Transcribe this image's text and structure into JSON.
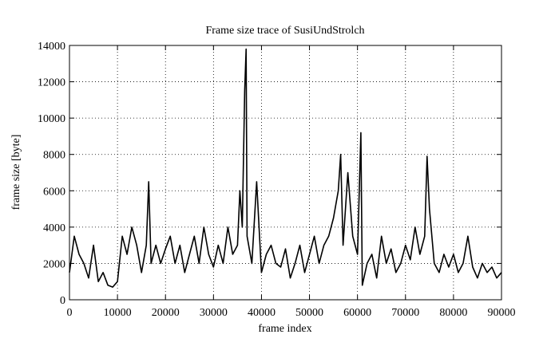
{
  "chart_data": {
    "type": "line",
    "title": "Frame size trace of SusiUndStrolch",
    "xlabel": "frame index",
    "ylabel": "frame size [byte]",
    "x": [
      0,
      1000,
      2000,
      3000,
      4000,
      5000,
      6000,
      7000,
      8000,
      9000,
      10000,
      11000,
      12000,
      13000,
      14000,
      15000,
      16000,
      16500,
      17000,
      18000,
      19000,
      20000,
      21000,
      22000,
      23000,
      24000,
      25000,
      26000,
      27000,
      28000,
      29000,
      30000,
      31000,
      32000,
      33000,
      34000,
      35000,
      35500,
      36000,
      36500,
      36800,
      37000,
      38000,
      39000,
      40000,
      41000,
      42000,
      43000,
      44000,
      45000,
      46000,
      47000,
      48000,
      49000,
      50000,
      51000,
      52000,
      53000,
      54000,
      55000,
      56000,
      56500,
      57000,
      58000,
      59000,
      60000,
      60700,
      61000,
      62000,
      63000,
      64000,
      65000,
      66000,
      67000,
      68000,
      69000,
      70000,
      71000,
      72000,
      73000,
      74000,
      74500,
      75000,
      76000,
      77000,
      78000,
      79000,
      80000,
      81000,
      82000,
      83000,
      84000,
      85000,
      86000,
      87000,
      88000,
      89000,
      90000
    ],
    "series": [
      {
        "name": "SusiUndStrolch",
        "color": "#000000",
        "values": [
          1500,
          3500,
          2500,
          2000,
          1200,
          3000,
          1000,
          1500,
          800,
          700,
          1000,
          3500,
          2500,
          4000,
          3000,
          1500,
          3000,
          6500,
          2000,
          3000,
          2000,
          2800,
          3500,
          2000,
          3000,
          1500,
          2500,
          3500,
          2000,
          4000,
          2500,
          1800,
          3000,
          2000,
          4000,
          2500,
          3000,
          6000,
          4000,
          11500,
          13800,
          3500,
          2000,
          6500,
          1500,
          2500,
          3000,
          2000,
          1800,
          2800,
          1200,
          2000,
          3000,
          1500,
          2500,
          3500,
          2000,
          3000,
          3500,
          4500,
          6000,
          8000,
          3000,
          7000,
          3500,
          2500,
          9200,
          800,
          2000,
          2500,
          1200,
          3500,
          2000,
          2800,
          1500,
          2000,
          3000,
          2200,
          4000,
          2500,
          3500,
          7900,
          5000,
          2000,
          1500,
          2500,
          1800,
          2500,
          1500,
          2000,
          3500,
          1800,
          1200,
          2000,
          1500,
          1800,
          1200,
          1500
        ]
      }
    ],
    "xlim": [
      0,
      90000
    ],
    "xticks": [
      0,
      10000,
      20000,
      30000,
      40000,
      50000,
      60000,
      70000,
      80000,
      90000
    ],
    "ylim": [
      0,
      14000
    ],
    "yticks": [
      0,
      2000,
      4000,
      6000,
      8000,
      10000,
      12000,
      14000
    ],
    "grid": true
  }
}
